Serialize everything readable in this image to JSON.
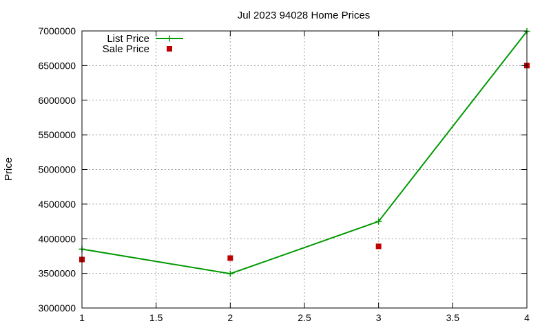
{
  "chart_data": {
    "type": "line",
    "title": "Jul 2023 94028 Home Prices",
    "xlabel": "",
    "ylabel": "Price",
    "xlim": [
      1,
      4
    ],
    "ylim": [
      3000000,
      7000000
    ],
    "x_ticks": [
      "1",
      "1.5",
      "2",
      "2.5",
      "3",
      "3.5",
      "4"
    ],
    "y_ticks": [
      "3000000",
      "3500000",
      "4000000",
      "4500000",
      "5000000",
      "5500000",
      "6000000",
      "6500000",
      "7000000"
    ],
    "grid": true,
    "legend_position": "top-left",
    "series": [
      {
        "name": "List Price",
        "style": "line+points",
        "color": "#009900",
        "x": [
          1,
          2,
          3,
          4
        ],
        "y": [
          3850000,
          3495000,
          4250000,
          6995000
        ]
      },
      {
        "name": "Sale Price",
        "style": "points",
        "color": "#c00000",
        "x": [
          1,
          2,
          3,
          4
        ],
        "y": [
          3700000,
          3720000,
          3890000,
          6500000
        ]
      }
    ]
  }
}
